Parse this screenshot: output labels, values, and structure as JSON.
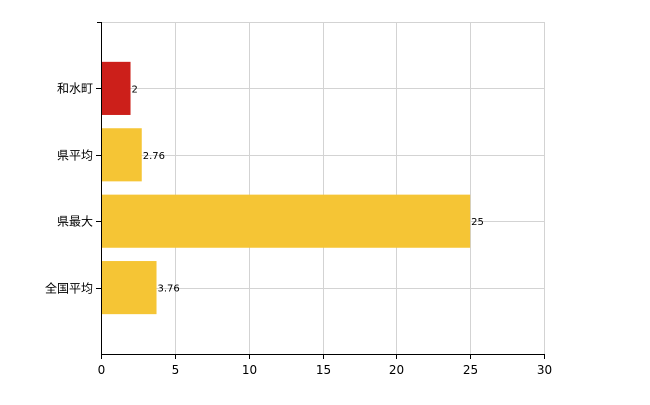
{
  "chart_data": {
    "type": "bar",
    "orientation": "horizontal",
    "categories": [
      "和水町",
      "県平均",
      "県最大",
      "全国平均"
    ],
    "values": [
      2,
      2.76,
      25,
      3.76
    ],
    "data_labels": [
      "2",
      "2.76",
      "25",
      "3.76"
    ],
    "colors": [
      "#cc1f1a",
      "#f5c535",
      "#f5c535",
      "#f5c535"
    ],
    "xlim": [
      0,
      30
    ],
    "xticks": [
      0,
      5,
      10,
      15,
      20,
      25,
      30
    ],
    "xtick_labels": [
      "0",
      "5",
      "10",
      "15",
      "20",
      "25",
      "30"
    ],
    "grid": true,
    "legend": "none",
    "title": "",
    "xlabel": "",
    "ylabel": ""
  }
}
